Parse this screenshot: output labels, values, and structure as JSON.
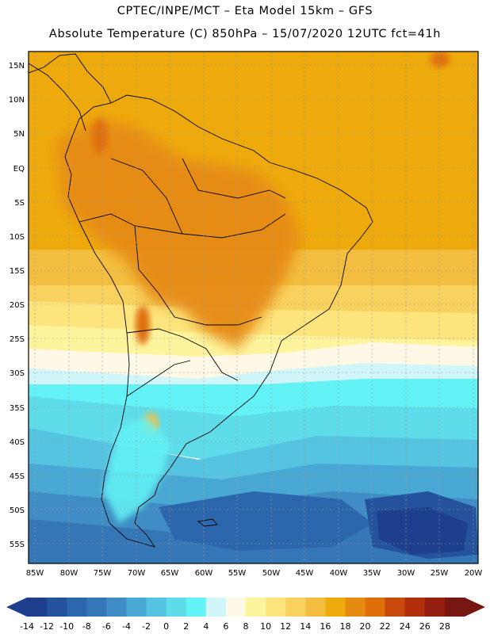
{
  "header": {
    "line1": "CPTEC/INPE/MCT –  Eta Model 15km – GFS",
    "line2": "Absolute Temperature (C) 850hPa – 15/07/2020 12UTC fct=41h"
  },
  "map": {
    "region": "South America",
    "lat_ticks": [
      "15N",
      "10N",
      "5N",
      "EQ",
      "5S",
      "10S",
      "15S",
      "20S",
      "25S",
      "30S",
      "35S",
      "40S",
      "45S",
      "50S",
      "55S"
    ],
    "lon_ticks": [
      "85W",
      "80W",
      "75W",
      "70W",
      "65W",
      "60W",
      "55W",
      "50W",
      "45W",
      "40W",
      "35W",
      "30W",
      "25W",
      "20W"
    ],
    "lat_range_deg": [
      -58,
      16
    ],
    "lon_range_deg": [
      -86,
      -20
    ]
  },
  "colorbar": {
    "labels": [
      "-14",
      "-12",
      "-10",
      "-8",
      "-6",
      "-4",
      "-2",
      "0",
      "2",
      "4",
      "6",
      "8",
      "10",
      "12",
      "14",
      "16",
      "18",
      "20",
      "22",
      "24",
      "26",
      "28"
    ],
    "colors": [
      "#1d3f8e",
      "#24529c",
      "#2c67ad",
      "#3576b6",
      "#3f8dc4",
      "#49a8d3",
      "#55c4e0",
      "#5fdcea",
      "#63f3f6",
      "#d1f6fa",
      "#fff8e6",
      "#fef49e",
      "#fde47c",
      "#f9d15e",
      "#f3be3f",
      "#eeaa0d",
      "#e68b12",
      "#df6f08",
      "#c9480c",
      "#b22e0d",
      "#952012",
      "#771712"
    ]
  },
  "palette": {
    "ocean_north": "#eeaa0d",
    "continent_hot": "#e68b12"
  }
}
